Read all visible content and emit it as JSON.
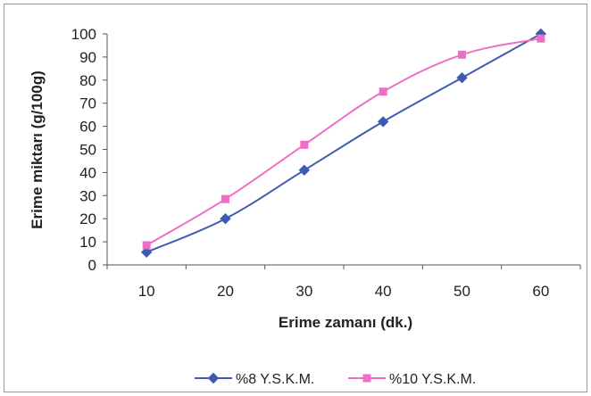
{
  "chart_data": {
    "type": "line",
    "xlabel": "Erime zamanı (dk.)",
    "ylabel": "Erime miktarı (g/100g)",
    "x": [
      10,
      20,
      30,
      40,
      50,
      60
    ],
    "ylim": [
      0,
      100
    ],
    "yticks": [
      "0",
      "10",
      "20",
      "30",
      "40",
      "50",
      "60",
      "70",
      "80",
      "90",
      "100"
    ],
    "xticks": [
      "10",
      "20",
      "30",
      "40",
      "50",
      "60"
    ],
    "grid": false,
    "legend_position": "bottom",
    "series": [
      {
        "name": "%8 Y.S.K.M.",
        "values": [
          5.5,
          20,
          41,
          62,
          81,
          100
        ],
        "color": "#3f5bb0",
        "marker": "diamond"
      },
      {
        "name": "%10 Y.S.K.M.",
        "values": [
          8.5,
          28.5,
          52,
          75,
          91,
          98
        ],
        "color": "#ee6ec6",
        "marker": "square"
      }
    ]
  }
}
